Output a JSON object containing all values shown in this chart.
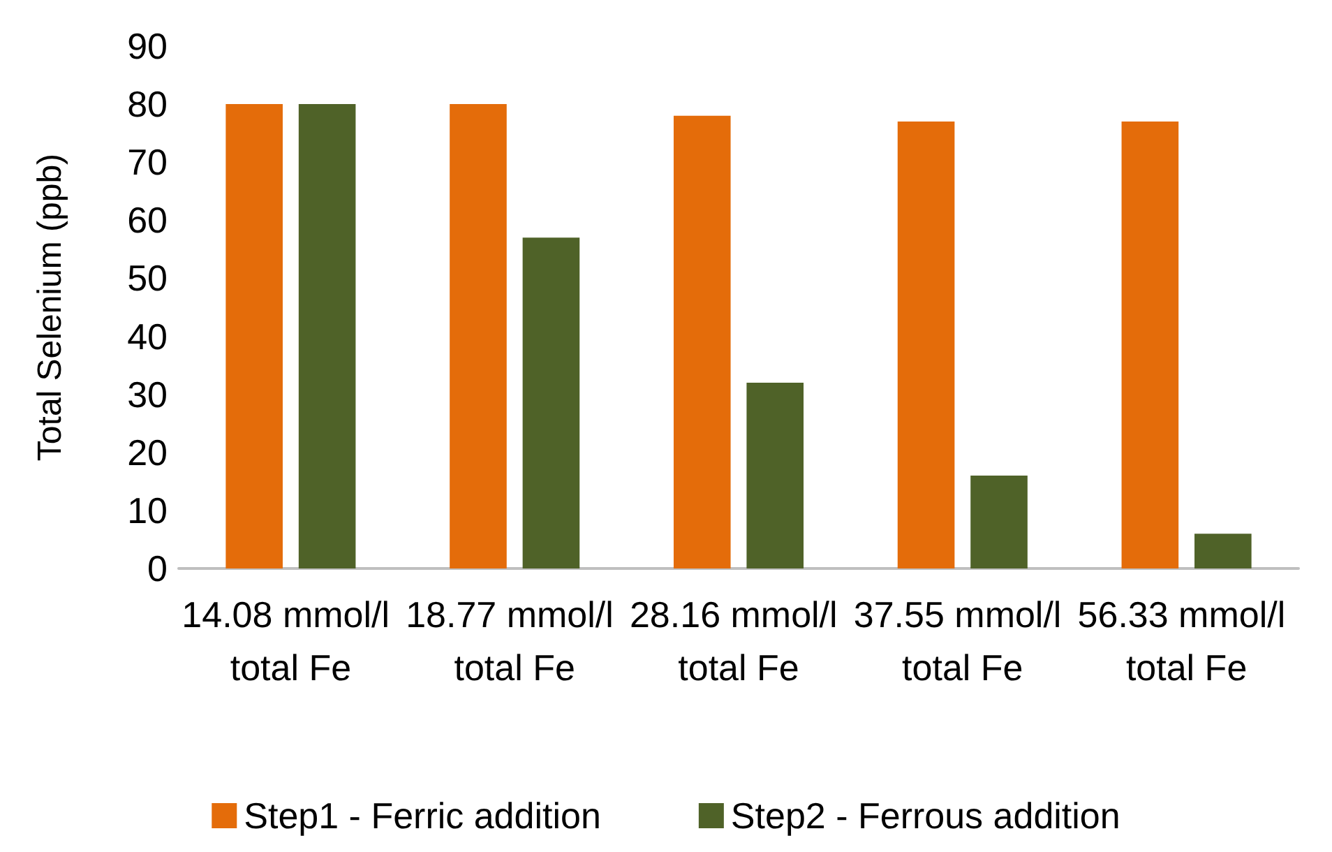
{
  "chart_data": {
    "type": "bar",
    "ylabel": "Total Selenium (ppb)",
    "categories": [
      "14.08 mmol/l total Fe",
      "18.77 mmol/l total Fe",
      "28.16 mmol/l total Fe",
      "37.55 mmol/l total Fe",
      "56.33 mmol/l total Fe"
    ],
    "series": [
      {
        "name": "Step1 - Ferric addition",
        "color": "#e46c0a",
        "values": [
          80,
          80,
          78,
          77,
          77
        ]
      },
      {
        "name": "Step2 - Ferrous addition",
        "color": "#4f6228",
        "values": [
          80,
          57,
          32,
          16,
          6
        ]
      }
    ],
    "ylim": [
      0,
      90
    ],
    "yticks": [
      0,
      10,
      20,
      30,
      40,
      50,
      60,
      70,
      80,
      90
    ],
    "grid": false,
    "legend": "bottom"
  }
}
